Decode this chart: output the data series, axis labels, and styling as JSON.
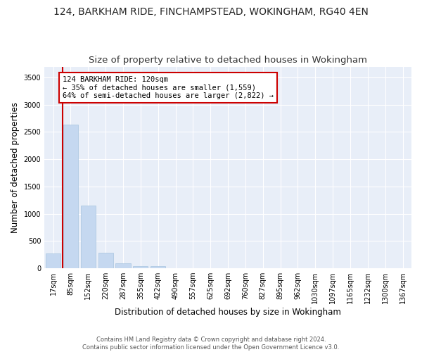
{
  "title1": "124, BARKHAM RIDE, FINCHAMPSTEAD, WOKINGHAM, RG40 4EN",
  "title2": "Size of property relative to detached houses in Wokingham",
  "xlabel": "Distribution of detached houses by size in Wokingham",
  "ylabel": "Number of detached properties",
  "categories": [
    "17sqm",
    "85sqm",
    "152sqm",
    "220sqm",
    "287sqm",
    "355sqm",
    "422sqm",
    "490sqm",
    "557sqm",
    "625sqm",
    "692sqm",
    "760sqm",
    "827sqm",
    "895sqm",
    "962sqm",
    "1030sqm",
    "1097sqm",
    "1165sqm",
    "1232sqm",
    "1300sqm",
    "1367sqm"
  ],
  "values": [
    270,
    2630,
    1150,
    285,
    90,
    45,
    35,
    0,
    0,
    0,
    0,
    0,
    0,
    0,
    0,
    0,
    0,
    0,
    0,
    0,
    0
  ],
  "bar_color": "#c5d8f0",
  "bar_edge_color": "#a8c4e0",
  "vline_x": 0.535,
  "vline_color": "#cc0000",
  "annotation_text": "124 BARKHAM RIDE: 120sqm\n← 35% of detached houses are smaller (1,559)\n64% of semi-detached houses are larger (2,822) →",
  "annotation_box_facecolor": "#ffffff",
  "annotation_box_edgecolor": "#cc0000",
  "ylim": [
    0,
    3700
  ],
  "yticks": [
    0,
    500,
    1000,
    1500,
    2000,
    2500,
    3000,
    3500
  ],
  "fig_facecolor": "#ffffff",
  "axes_facecolor": "#e8eef8",
  "grid_color": "#ffffff",
  "footer": "Contains HM Land Registry data © Crown copyright and database right 2024.\nContains public sector information licensed under the Open Government Licence v3.0.",
  "title1_fontsize": 10,
  "title2_fontsize": 9.5,
  "tick_fontsize": 7,
  "ylabel_fontsize": 8.5,
  "xlabel_fontsize": 8.5,
  "annotation_fontsize": 7.5,
  "footer_fontsize": 6.0
}
